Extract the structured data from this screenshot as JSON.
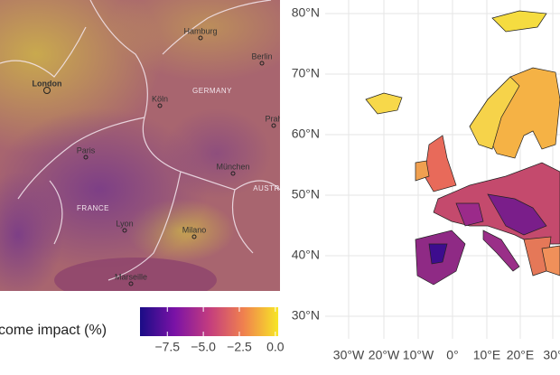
{
  "left_map": {
    "cities": [
      "Hamburg",
      "Berlin",
      "London",
      "Köln",
      "Paris",
      "München",
      "Lyon",
      "Milano",
      "Marseille",
      "Prah"
    ],
    "countries": [
      "GERMANY",
      "FRANCE",
      "AUSTR"
    ]
  },
  "right_map": {
    "lat_labels": [
      "80°N",
      "70°N",
      "60°N",
      "50°N",
      "40°N",
      "30°N"
    ],
    "lon_labels": [
      "30°W",
      "20°W",
      "10°W",
      "0°",
      "10°E",
      "20°E",
      "30°"
    ]
  },
  "colorbar": {
    "label": "come impact (%)",
    "lim": [
      -9.4,
      0.2
    ],
    "ticks": [
      {
        "value": -7.5,
        "label": "−7.5"
      },
      {
        "value": -5,
        "label": "−5.0"
      },
      {
        "value": -2.5,
        "label": "−2.5"
      },
      {
        "value": 0,
        "label": "0.0"
      }
    ]
  }
}
